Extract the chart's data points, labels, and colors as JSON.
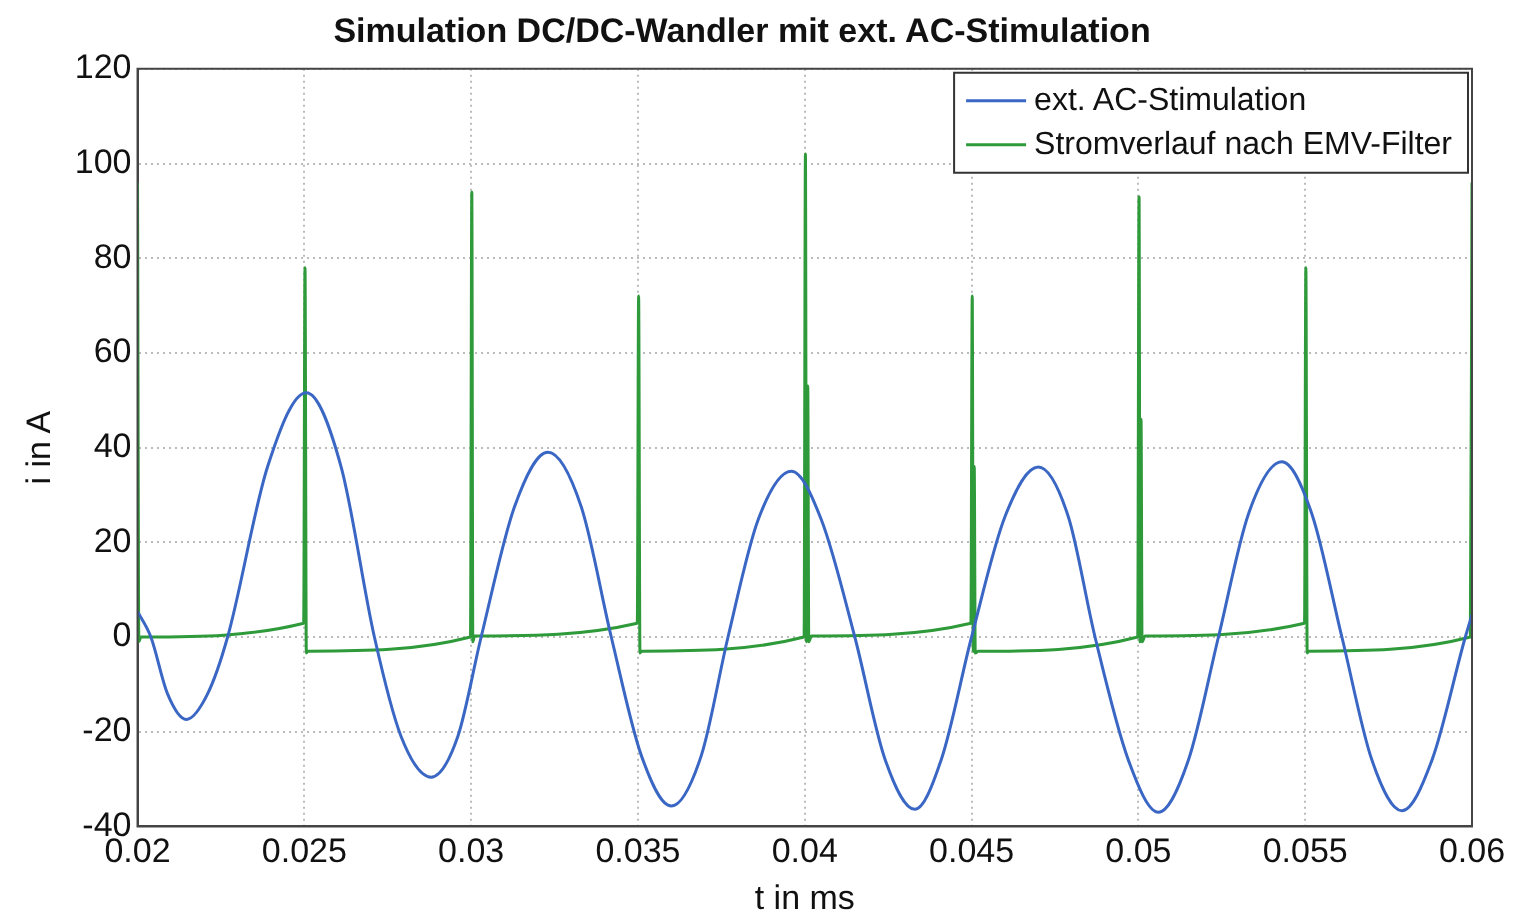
{
  "chart_data": {
    "type": "line",
    "title": "Simulation DC/DC-Wandler mit ext. AC-Stimulation",
    "xlabel": "t in ms",
    "ylabel": "i in A",
    "xlim": [
      0.02,
      0.06
    ],
    "xticks": [
      0.02,
      0.025,
      0.03,
      0.035,
      0.04,
      0.045,
      0.05,
      0.055,
      0.06
    ],
    "ylim": [
      -40,
      120
    ],
    "yticks": [
      -40,
      -20,
      0,
      20,
      40,
      60,
      80,
      100,
      120
    ],
    "grid": true,
    "legend": "top right",
    "marker": "none",
    "line_style": "solid",
    "series": [
      {
        "name": "ext. AC-Stimulation",
        "color": "#3a66c4",
        "x": [
          0.02,
          0.0204,
          0.0209,
          0.02146,
          0.0221,
          0.0227,
          0.0239,
          0.02506,
          0.0261,
          0.0271,
          0.0279,
          0.0288,
          0.0296,
          0.0303,
          0.0313,
          0.0323,
          0.0333,
          0.0342,
          0.0351,
          0.036,
          0.0369,
          0.0377,
          0.0386,
          0.0396,
          0.0405,
          0.0415,
          0.0424,
          0.0433,
          0.0441,
          0.045,
          0.046,
          0.047,
          0.0479,
          0.0487,
          0.0497,
          0.0506,
          0.0515,
          0.0524,
          0.0533,
          0.0543,
          0.0552,
          0.0561,
          0.057,
          0.0579,
          0.0588,
          0.0598,
          0.06
        ],
        "values": [
          5.4,
          0,
          -12,
          -17.4,
          -12,
          0,
          36,
          51.6,
          36,
          0,
          -21,
          -29.6,
          -21,
          0,
          27.5,
          39,
          27.5,
          0,
          -25,
          -35.7,
          -25,
          0,
          24.7,
          35,
          24.7,
          0,
          -25.7,
          -36.4,
          -25.7,
          0,
          25.4,
          35.9,
          25.4,
          0,
          -26,
          -37,
          -26,
          0,
          26,
          37,
          26,
          0,
          -26,
          -36.7,
          -26,
          0,
          4.7
        ]
      },
      {
        "name": "Stromverlauf nach EMV-Filter",
        "color": "#2e9a3a",
        "x": [
          0.02,
          0.02004,
          0.0201,
          0.02498,
          0.02502,
          0.02506,
          0.0251,
          0.02998,
          0.03002,
          0.03005,
          0.0301,
          0.03498,
          0.03502,
          0.03506,
          0.0351,
          0.03998,
          0.04002,
          0.04005,
          0.04009,
          0.04012,
          0.0402,
          0.04498,
          0.04502,
          0.04505,
          0.04508,
          0.04511,
          0.0452,
          0.04998,
          0.05002,
          0.05005,
          0.05008,
          0.05011,
          0.0502,
          0.05498,
          0.05502,
          0.05506,
          0.0551,
          0.05995,
          0.06
        ],
        "values": [
          96,
          -1,
          0,
          2.9,
          78,
          -3.4,
          -3,
          0,
          94,
          -1,
          0.2,
          2.9,
          72,
          -3.4,
          -3,
          0,
          102,
          -1,
          53,
          -1,
          0.2,
          2.9,
          72,
          -3,
          36,
          -3.4,
          -3,
          0,
          93,
          -1,
          46,
          -1,
          0.2,
          2.9,
          78,
          -3.4,
          -3,
          0,
          96
        ]
      }
    ]
  }
}
